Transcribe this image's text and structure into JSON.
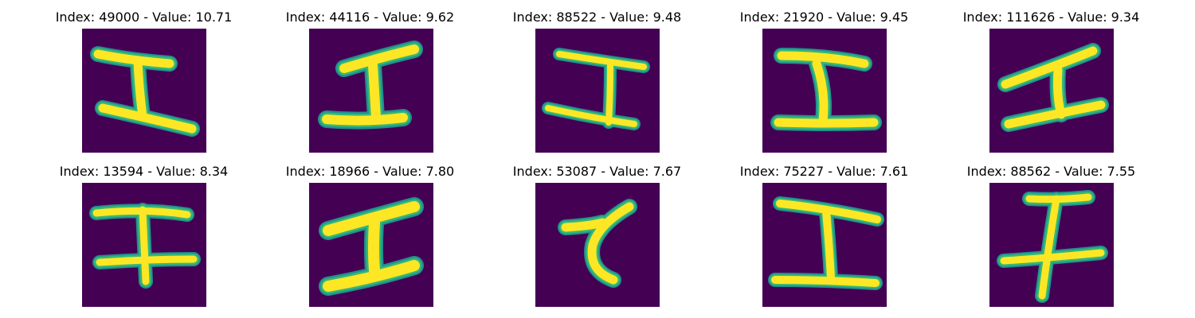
{
  "figure": {
    "colors": {
      "background": "#440154",
      "foreground": "#fde725",
      "edge_mid": "#35b779",
      "edge_outer": "#21918c"
    },
    "panels": [
      {
        "index": "49000",
        "value": "10.71",
        "title": "Index: 49000 - Value: 10.71"
      },
      {
        "index": "44116",
        "value": "9.62",
        "title": "Index: 44116 - Value: 9.62"
      },
      {
        "index": "88522",
        "value": "9.48",
        "title": "Index: 88522 - Value: 9.48"
      },
      {
        "index": "21920",
        "value": "9.45",
        "title": "Index: 21920 - Value: 9.45"
      },
      {
        "index": "111626",
        "value": "9.34",
        "title": "Index: 111626 - Value: 9.34"
      },
      {
        "index": "13594",
        "value": "8.34",
        "title": "Index: 13594 - Value: 8.34"
      },
      {
        "index": "18966",
        "value": "7.80",
        "title": "Index: 18966 - Value: 7.80"
      },
      {
        "index": "53087",
        "value": "7.67",
        "title": "Index: 53087 - Value: 7.67"
      },
      {
        "index": "75227",
        "value": "7.61",
        "title": "Index: 75227 - Value: 7.61"
      },
      {
        "index": "88562",
        "value": "7.55",
        "title": "Index: 88562 - Value: 7.55"
      }
    ]
  }
}
